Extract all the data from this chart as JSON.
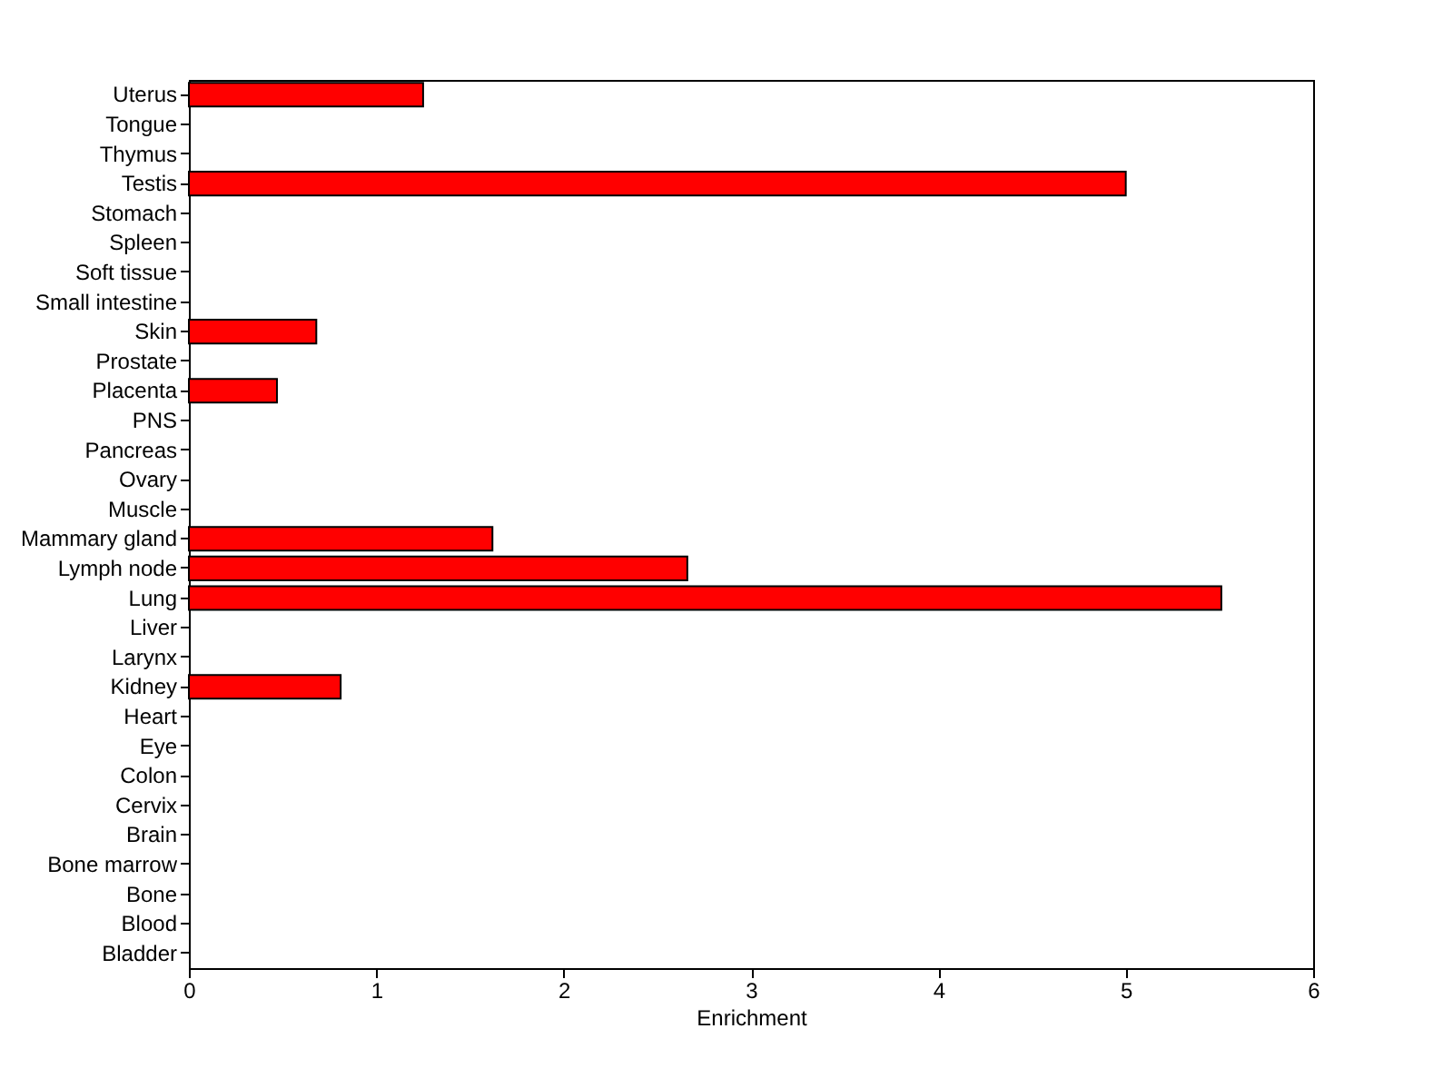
{
  "chart_data": {
    "type": "bar",
    "orientation": "horizontal",
    "xlabel": "Enrichment",
    "categories": [
      "Uterus",
      "Tongue",
      "Thymus",
      "Testis",
      "Stomach",
      "Spleen",
      "Soft tissue",
      "Small intestine",
      "Skin",
      "Prostate",
      "Placenta",
      "PNS",
      "Pancreas",
      "Ovary",
      "Muscle",
      "Mammary gland",
      "Lymph node",
      "Lung",
      "Liver",
      "Larynx",
      "Kidney",
      "Heart",
      "Eye",
      "Colon",
      "Cervix",
      "Brain",
      "Bone marrow",
      "Bone",
      "Blood",
      "Bladder"
    ],
    "values": [
      1.25,
      0,
      0,
      5.0,
      0,
      0,
      0,
      0,
      0.68,
      0,
      0.47,
      0,
      0,
      0,
      0,
      1.62,
      2.66,
      5.51,
      0,
      0,
      0.81,
      0,
      0,
      0,
      0,
      0,
      0,
      0,
      0,
      0
    ],
    "color": "#ff0000",
    "xlim": [
      0,
      6
    ],
    "xticks": [
      0,
      1,
      2,
      3,
      4,
      5,
      6
    ],
    "grid": false
  }
}
